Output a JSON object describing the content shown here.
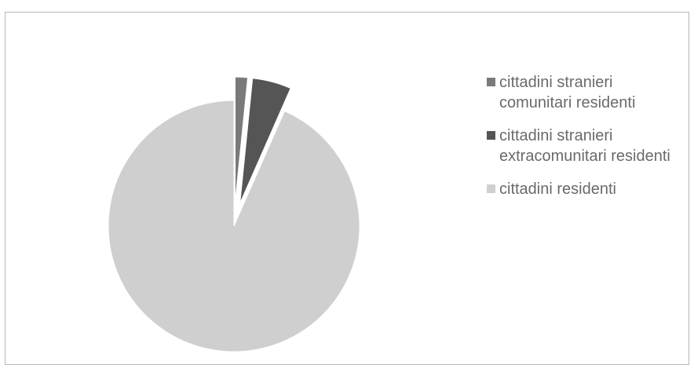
{
  "chart_data": {
    "type": "pie",
    "title": "",
    "series": [
      {
        "values": [
          1.6,
          5.0,
          93.4
        ],
        "labels": [
          "cittadini stranieri comunitari residenti",
          "cittadini stranieri extracomunitari residenti",
          "cittadini residenti"
        ],
        "colors": [
          "#7a7a7a",
          "#555555",
          "#cfcfcf"
        ]
      }
    ],
    "legend": {
      "position": "right",
      "entries": [
        "cittadini stranieri comunitari residenti",
        "cittadini stranieri extracomunitari residenti",
        "cittadini residenti"
      ]
    },
    "exploded": true
  }
}
